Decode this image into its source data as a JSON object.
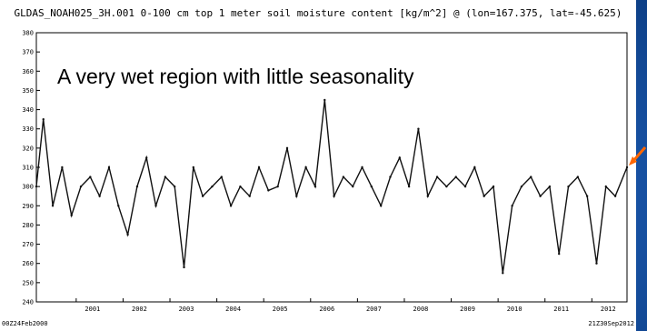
{
  "chart_data": {
    "type": "line",
    "title": "GLDAS_NOAH025_3H.001 0-100 cm top 1 meter soil moisture content [kg/m^2] @ (lon=167.375, lat=-45.625)",
    "annotation": "A very wet region with little seasonality",
    "xlabel": "",
    "ylabel": "",
    "ylim": [
      240,
      380
    ],
    "yticks": [
      240,
      250,
      260,
      270,
      280,
      290,
      300,
      310,
      320,
      330,
      340,
      350,
      360,
      370,
      380
    ],
    "xlim": [
      2000.15,
      2012.75
    ],
    "xticks": [
      2001,
      2002,
      2003,
      2004,
      2005,
      2006,
      2007,
      2008,
      2009,
      2010,
      2011,
      2012
    ],
    "start_label": "00Z24Feb2000",
    "end_label": "21Z30Sep2012",
    "grid": false,
    "legend": "none",
    "line_color": "#111111",
    "series": [
      {
        "x": [
          2000.15,
          2000.3,
          2000.5,
          2000.7,
          2000.9,
          2001.1,
          2001.3,
          2001.5,
          2001.7,
          2001.9,
          2002.1,
          2002.3,
          2002.5,
          2002.7,
          2002.9,
          2003.1,
          2003.3,
          2003.5,
          2003.7,
          2003.9,
          2004.1,
          2004.3,
          2004.5,
          2004.7,
          2004.9,
          2005.1,
          2005.3,
          2005.5,
          2005.7,
          2005.9,
          2006.1,
          2006.3,
          2006.5,
          2006.7,
          2006.9,
          2007.1,
          2007.3,
          2007.5,
          2007.7,
          2007.9,
          2008.1,
          2008.3,
          2008.5,
          2008.7,
          2008.9,
          2009.1,
          2009.3,
          2009.5,
          2009.7,
          2009.9,
          2010.1,
          2010.3,
          2010.5,
          2010.7,
          2010.9,
          2011.1,
          2011.3,
          2011.5,
          2011.7,
          2011.9,
          2012.1,
          2012.3,
          2012.5,
          2012.75
        ],
        "values": [
          300,
          335,
          290,
          310,
          285,
          300,
          305,
          295,
          310,
          290,
          275,
          300,
          315,
          290,
          305,
          300,
          258,
          310,
          295,
          300,
          305,
          290,
          300,
          295,
          310,
          298,
          300,
          320,
          295,
          310,
          300,
          345,
          295,
          305,
          300,
          310,
          300,
          290,
          305,
          315,
          300,
          330,
          295,
          305,
          300,
          305,
          300,
          310,
          295,
          300,
          255,
          290,
          300,
          305,
          295,
          300,
          265,
          300,
          305,
          295,
          260,
          300,
          295,
          310
        ]
      }
    ]
  },
  "colors": {
    "page": "#ffffff",
    "frame": "#000000",
    "arrow": "#ff6600"
  }
}
